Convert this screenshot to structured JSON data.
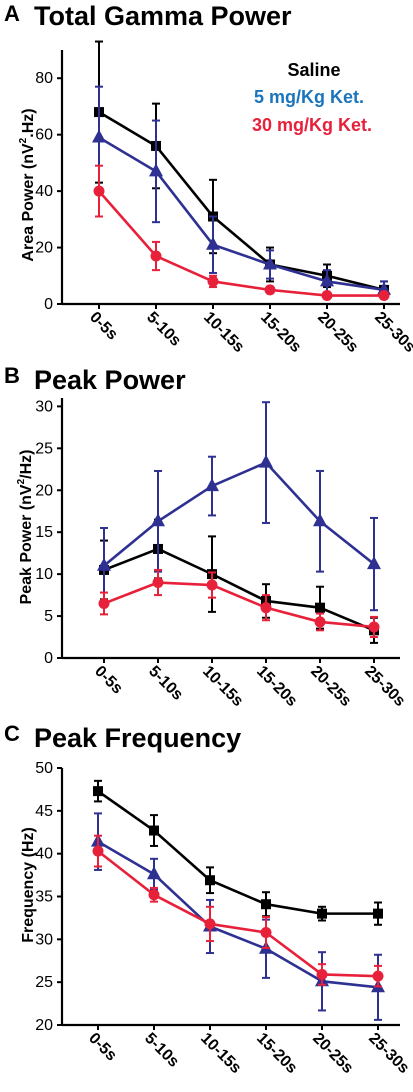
{
  "colors": {
    "saline": "#000000",
    "ket5": "#2e3192",
    "ket30": "#e8213b",
    "ket5_legend": "#1a75bc"
  },
  "legend": {
    "saline": "Saline",
    "ket5": "5 mg/Kg Ket.",
    "ket30": "30 mg/Kg Ket."
  },
  "chart_data": [
    {
      "type": "line",
      "panel": "A",
      "title": "Total Gamma Power",
      "ylabel_main": "Area Power (nV",
      "ylabel_sup": "2",
      "ylabel_end": ".Hz)",
      "categories": [
        "0-5s",
        "5-10s",
        "10-15s",
        "15-20s",
        "20-25s",
        "25-30s"
      ],
      "ylim": [
        0,
        90
      ],
      "yticks": [
        0,
        20,
        40,
        60,
        80
      ],
      "series": [
        {
          "name": "Saline",
          "color": "#000000",
          "marker": "square",
          "values": [
            68,
            56,
            31,
            14,
            10,
            5
          ],
          "err": [
            25,
            15,
            13,
            6,
            4,
            3
          ]
        },
        {
          "name": "5 mg/Kg Ket.",
          "color": "#2e3192",
          "marker": "triangle",
          "values": [
            59,
            47,
            21,
            14,
            8,
            5
          ],
          "err": [
            18,
            18,
            10,
            5,
            4,
            3
          ]
        },
        {
          "name": "30 mg/Kg Ket.",
          "color": "#e8213b",
          "marker": "circle",
          "values": [
            40,
            17,
            8,
            5,
            3,
            3
          ],
          "err": [
            9,
            5,
            2,
            1,
            1,
            1
          ]
        }
      ]
    },
    {
      "type": "line",
      "panel": "B",
      "title": "Peak Power",
      "ylabel_main": "Peak Power (nV",
      "ylabel_sup": "2",
      "ylabel_end": "/Hz)",
      "categories": [
        "0-5s",
        "5-10s",
        "10-15s",
        "15-20s",
        "20-25s",
        "25-30s"
      ],
      "ylim": [
        0,
        31
      ],
      "yticks": [
        0,
        5,
        10,
        15,
        20,
        25,
        30
      ],
      "series": [
        {
          "name": "Saline",
          "color": "#000000",
          "marker": "square",
          "values": [
            10.5,
            13,
            10,
            6.8,
            6,
            3.3
          ],
          "err": [
            3.5,
            3.5,
            4.5,
            2,
            2.5,
            1.5
          ]
        },
        {
          "name": "5 mg/Kg Ket.",
          "color": "#2e3192",
          "marker": "triangle",
          "values": [
            11,
            16.3,
            20.5,
            23.3,
            16.3,
            11.2
          ],
          "err": [
            4.5,
            6,
            3.5,
            7.2,
            6,
            5.5
          ]
        },
        {
          "name": "30 mg/Kg Ket.",
          "color": "#e8213b",
          "marker": "circle",
          "values": [
            6.5,
            9,
            8.7,
            6,
            4.3,
            3.7
          ],
          "err": [
            1.3,
            1.5,
            1.5,
            1.5,
            1,
            1.2
          ]
        }
      ]
    },
    {
      "type": "line",
      "panel": "C",
      "title": "Peak Frequency",
      "ylabel_main": "Frequency (Hz)",
      "ylabel_sup": "",
      "ylabel_end": "",
      "categories": [
        "0-5s",
        "5-10s",
        "10-15s",
        "15-20s",
        "20-25s",
        "25-30s"
      ],
      "ylim": [
        20,
        50
      ],
      "yticks": [
        20,
        25,
        30,
        35,
        40,
        45,
        50
      ],
      "series": [
        {
          "name": "Saline",
          "color": "#000000",
          "marker": "square",
          "values": [
            47.3,
            42.7,
            36.9,
            34.1,
            33,
            33
          ],
          "err": [
            1.2,
            1.8,
            1.5,
            1.4,
            0.8,
            1.3
          ]
        },
        {
          "name": "5 mg/Kg Ket.",
          "color": "#2e3192",
          "marker": "triangle",
          "values": [
            41.4,
            37.6,
            31.5,
            28.9,
            25.1,
            24.4
          ],
          "err": [
            3.3,
            1.8,
            3.1,
            3.4,
            3.4,
            3.8
          ]
        },
        {
          "name": "30 mg/Kg Ket.",
          "color": "#e8213b",
          "marker": "circle",
          "values": [
            40.3,
            35.2,
            31.8,
            30.8,
            25.9,
            25.7
          ],
          "err": [
            1.8,
            0.8,
            2,
            1.8,
            1.2,
            1.2
          ]
        }
      ]
    }
  ]
}
